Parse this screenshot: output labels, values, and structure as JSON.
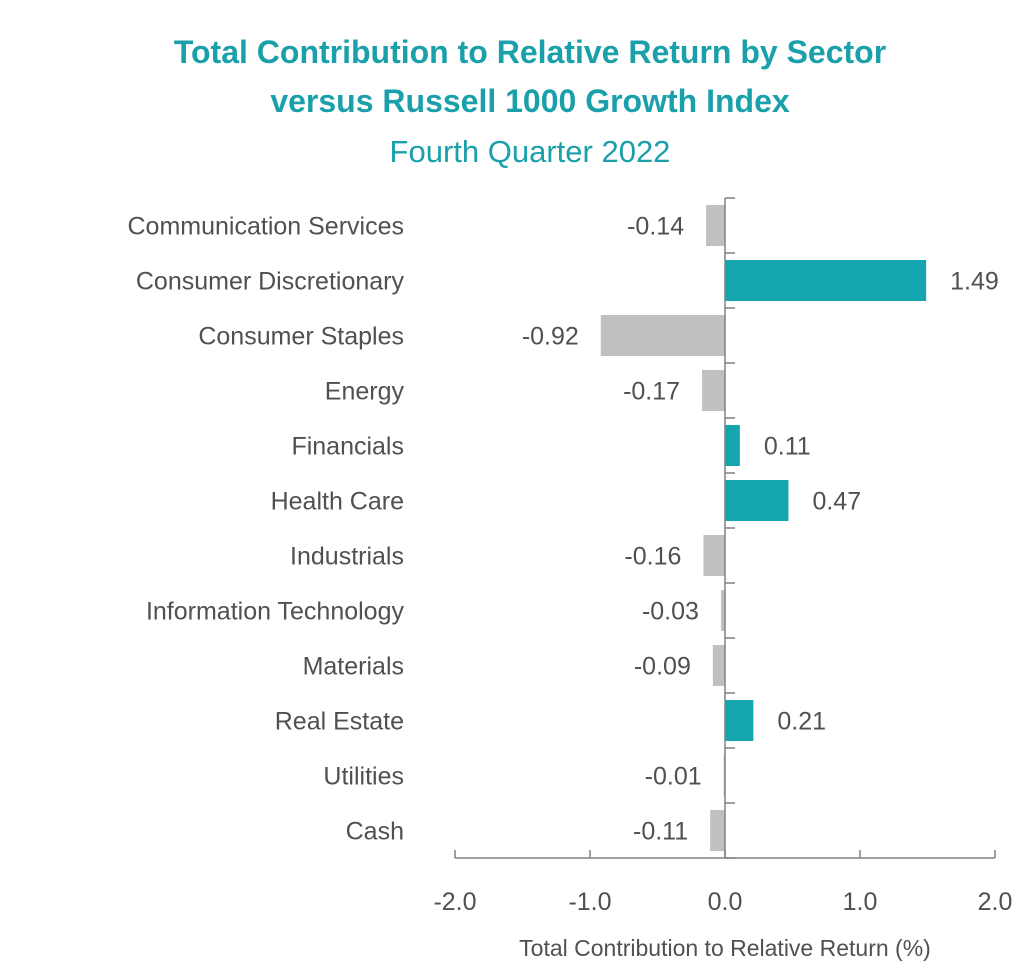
{
  "colors": {
    "title": "#1aa0aa",
    "positive": "#14a5ae",
    "negative": "#c0c0c0",
    "axis": "#808080",
    "text": "#505050"
  },
  "chart_data": {
    "type": "bar",
    "orientation": "horizontal",
    "title_lines": [
      "Total Contribution to Relative Return by Sector",
      "versus Russell 1000 Growth Index"
    ],
    "subtitle": "Fourth Quarter 2022",
    "xlabel": "Total Contribution to Relative Return (%)",
    "ylabel": "",
    "xlim": [
      -2.0,
      2.0
    ],
    "xticks": [
      "-2.0",
      "-1.0",
      "0.0",
      "1.0",
      "2.0"
    ],
    "grid": false,
    "categories": [
      "Communication Services",
      "Consumer Discretionary",
      "Consumer Staples",
      "Energy",
      "Financials",
      "Health Care",
      "Industrials",
      "Information Technology",
      "Materials",
      "Real Estate",
      "Utilities",
      "Cash"
    ],
    "values": [
      -0.14,
      1.49,
      -0.92,
      -0.17,
      0.11,
      0.47,
      -0.16,
      -0.03,
      -0.09,
      0.21,
      -0.01,
      -0.11
    ],
    "value_labels": [
      "-0.14",
      "1.49",
      "-0.92",
      "-0.17",
      "0.11",
      "0.47",
      "-0.16",
      "-0.03",
      "-0.09",
      "0.21",
      "-0.01",
      "-0.11"
    ]
  }
}
